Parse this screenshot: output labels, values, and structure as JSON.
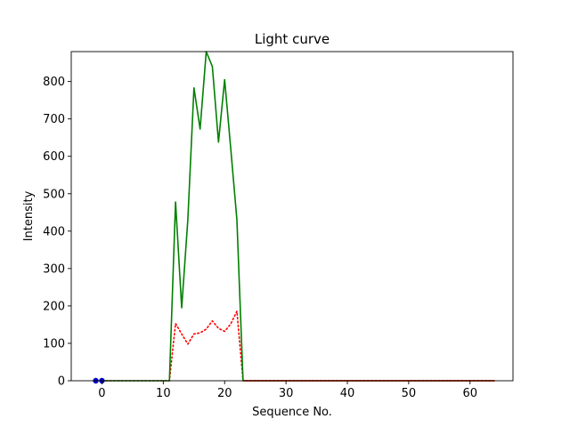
{
  "chart_data": {
    "type": "line",
    "title": "Light curve",
    "xlabel": "Sequence No.",
    "ylabel": "Intensity",
    "xlim": [
      -5,
      67
    ],
    "ylim": [
      0,
      880
    ],
    "xticks": [
      0,
      10,
      20,
      30,
      40,
      50,
      60
    ],
    "yticks": [
      0,
      100,
      200,
      300,
      400,
      500,
      600,
      700,
      800
    ],
    "grid": false,
    "legend": "none",
    "series": [
      {
        "style": "solid",
        "color": "#008000",
        "x": [
          0,
          1,
          2,
          3,
          4,
          5,
          6,
          7,
          8,
          9,
          10,
          11,
          12,
          13,
          14,
          15,
          16,
          17,
          18,
          19,
          20,
          21,
          22,
          23,
          24,
          25,
          26,
          27,
          28,
          29,
          30,
          31,
          32,
          33,
          34,
          35,
          36,
          37,
          38,
          39,
          40,
          41,
          42,
          43,
          44,
          45,
          46,
          47,
          48,
          49,
          50,
          51,
          52,
          53,
          54,
          55,
          56,
          57,
          58,
          59,
          60,
          61,
          62,
          63,
          64
        ],
        "y": [
          0,
          0,
          0,
          0,
          0,
          0,
          0,
          0,
          0,
          0,
          0,
          0,
          478,
          195,
          430,
          783,
          673,
          880,
          840,
          638,
          805,
          620,
          430,
          0,
          0,
          0,
          0,
          0,
          0,
          0,
          0,
          0,
          0,
          0,
          0,
          0,
          0,
          0,
          0,
          0,
          0,
          0,
          0,
          0,
          0,
          0,
          0,
          0,
          0,
          0,
          0,
          0,
          0,
          0,
          0,
          0,
          0,
          0,
          0,
          0,
          0,
          0,
          0,
          0,
          0
        ]
      },
      {
        "style": "dotted",
        "color": "#ff0000",
        "x": [
          0,
          1,
          2,
          3,
          4,
          5,
          6,
          7,
          8,
          9,
          10,
          11,
          12,
          13,
          14,
          15,
          16,
          17,
          18,
          19,
          20,
          21,
          22,
          23,
          24,
          25,
          26,
          27,
          28,
          29,
          30,
          31,
          32,
          33,
          34,
          35,
          36,
          37,
          38,
          39,
          40,
          41,
          42,
          43,
          44,
          45,
          46,
          47,
          48,
          49,
          50,
          51,
          52,
          53,
          54,
          55,
          56,
          57,
          58,
          59,
          60,
          61,
          62,
          63,
          64
        ],
        "y": [
          0,
          0,
          0,
          0,
          0,
          0,
          0,
          0,
          0,
          0,
          0,
          0,
          153,
          125,
          98,
          125,
          128,
          138,
          160,
          140,
          132,
          152,
          186,
          0,
          0,
          0,
          0,
          0,
          0,
          0,
          0,
          0,
          0,
          0,
          0,
          0,
          0,
          0,
          0,
          0,
          0,
          0,
          0,
          0,
          0,
          0,
          0,
          0,
          0,
          0,
          0,
          0,
          0,
          0,
          0,
          0,
          0,
          0,
          0,
          0,
          0,
          0,
          0,
          0,
          0
        ]
      },
      {
        "style": "markers",
        "color": "#0000cc",
        "x": [
          -1,
          0
        ],
        "y": [
          0,
          0
        ]
      }
    ]
  }
}
